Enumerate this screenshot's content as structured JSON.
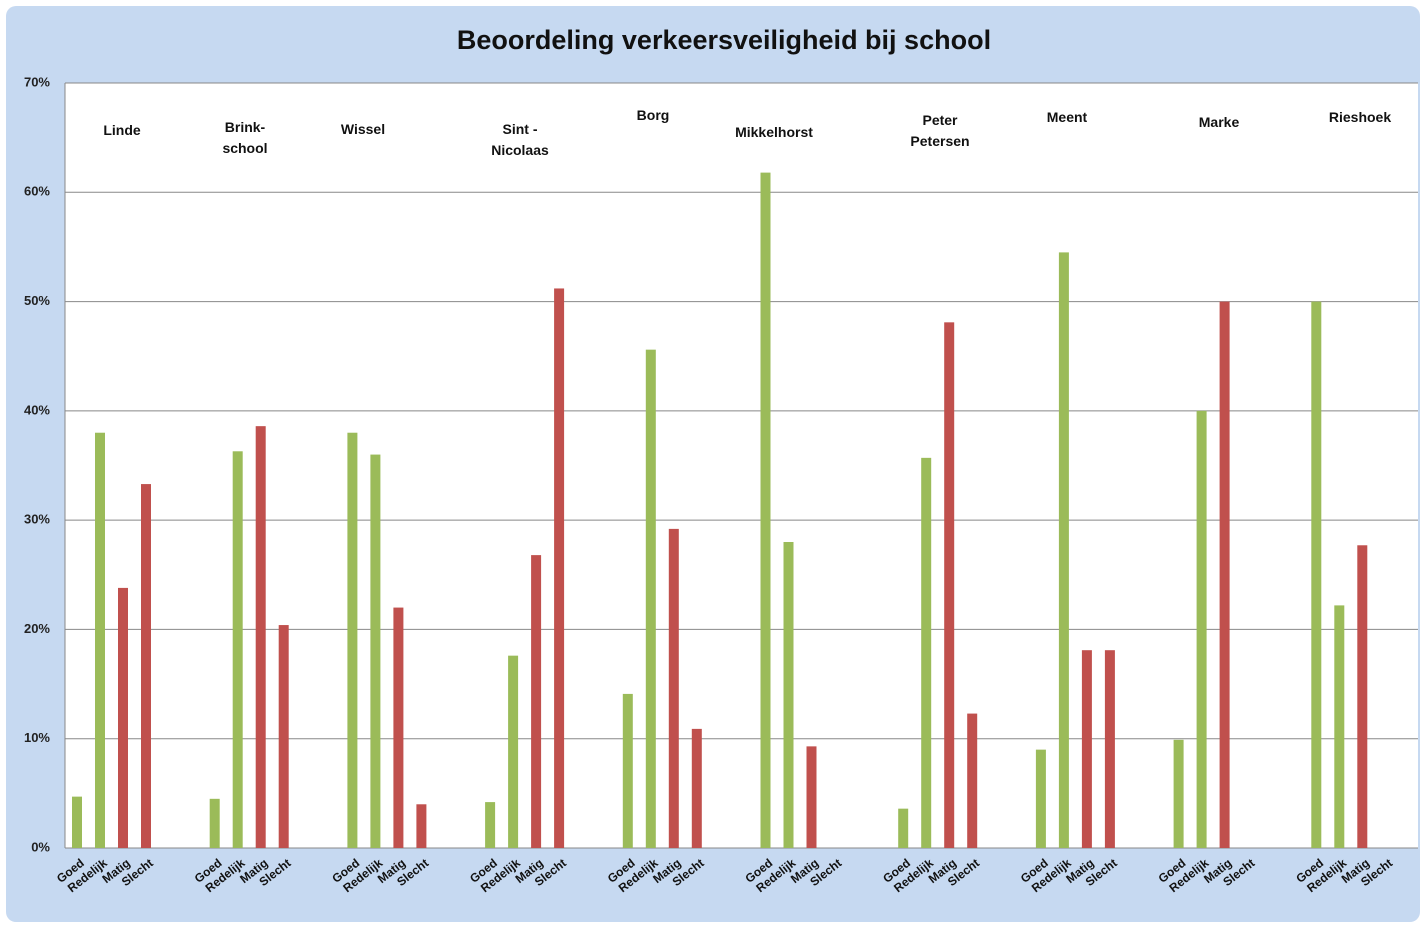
{
  "chart_data": {
    "type": "bar",
    "title": "Beoordeling verkeersveiligheid bij school",
    "categories": [
      "Linde",
      "Brink-\nschool",
      "Wissel",
      "Sint -\nNicolaas",
      "Borg",
      "Mikkelhorst",
      "Peter\nPetersen",
      "Meent",
      "Marke",
      "Rieshoek"
    ],
    "series": [
      {
        "name": "Goed",
        "color": "#9bbb59",
        "values": [
          4.7,
          4.5,
          38,
          4.2,
          14.1,
          61.8,
          3.6,
          9,
          9.9,
          50
        ]
      },
      {
        "name": "Redelijk",
        "color": "#9bbb59",
        "values": [
          38,
          36.3,
          36,
          17.6,
          45.6,
          28,
          35.7,
          54.5,
          40,
          22.2
        ]
      },
      {
        "name": "Matig",
        "color": "#c0504d",
        "values": [
          23.8,
          38.6,
          22,
          26.8,
          29.2,
          9.3,
          48.1,
          18.1,
          50,
          27.7
        ]
      },
      {
        "name": "Slecht",
        "color": "#c0504d",
        "values": [
          33.3,
          20.4,
          4,
          51.2,
          10.9,
          0,
          12.3,
          18.1,
          0,
          0
        ]
      }
    ],
    "ylim": [
      0,
      70
    ],
    "yticks": [
      {
        "value": 0,
        "label": "0%"
      },
      {
        "value": 10,
        "label": "10%"
      },
      {
        "value": 20,
        "label": "20%"
      },
      {
        "value": 30,
        "label": "30%"
      },
      {
        "value": 40,
        "label": "40%"
      },
      {
        "value": 50,
        "label": "50%"
      },
      {
        "value": 60,
        "label": "60%"
      },
      {
        "value": 70,
        "label": "70%"
      }
    ],
    "grid": true
  }
}
